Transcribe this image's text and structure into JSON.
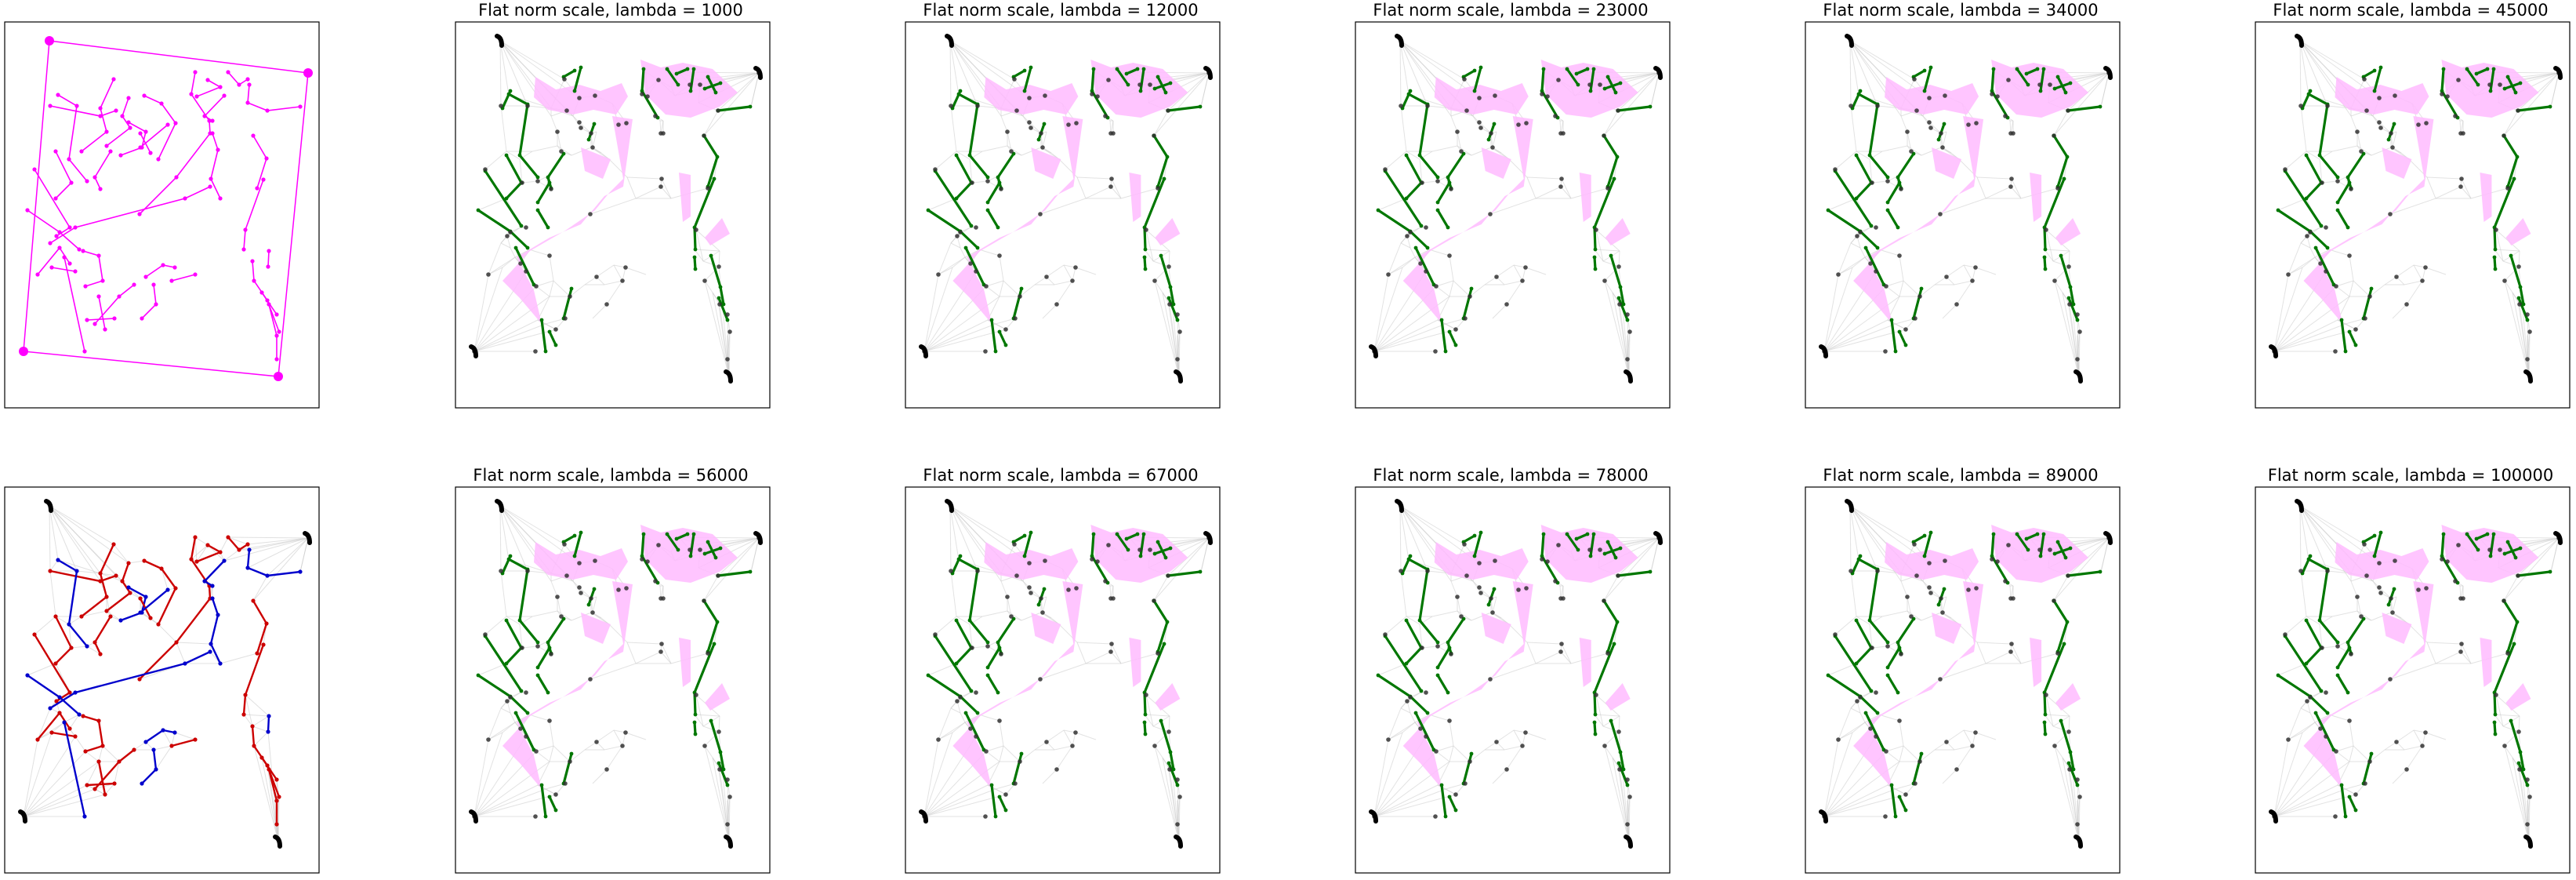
{
  "titles": {
    "t1": "Flat norm scale, lambda = 1000",
    "t2": "Flat norm scale, lambda = 12000",
    "t3": "Flat norm scale, lambda = 23000",
    "t4": "Flat norm scale, lambda = 34000",
    "t5": "Flat norm scale, lambda = 45000",
    "t6": "Flat norm scale, lambda = 56000",
    "t7": "Flat norm scale, lambda = 67000",
    "t8": "Flat norm scale, lambda = 78000",
    "t9": "Flat norm scale, lambda = 89000",
    "t10": "Flat norm scale, lambda = 100000"
  },
  "colors": {
    "boundary": "#ff00ff",
    "red_tree": "#cc0000",
    "blue_tree": "#0000cc",
    "flat_edges": "#007700",
    "flat_fill": "#ffbbff",
    "mesh": "#cccccc",
    "points": "#333333",
    "frame": "#000000"
  }
}
